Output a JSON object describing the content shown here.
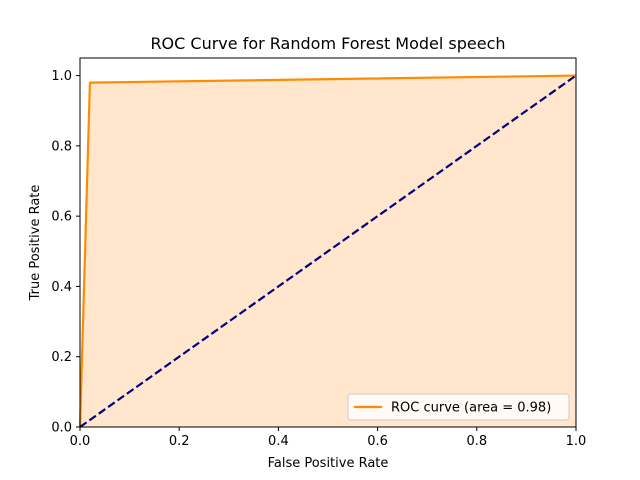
{
  "chart_data": {
    "type": "line",
    "title": "ROC Curve for Random Forest Model speech",
    "xlabel": "False Positive Rate",
    "ylabel": "True Positive Rate",
    "xlim": [
      0.0,
      1.0
    ],
    "ylim": [
      0.0,
      1.05
    ],
    "xticks": [
      0.0,
      0.2,
      0.4,
      0.6,
      0.8,
      1.0
    ],
    "yticks": [
      0.0,
      0.2,
      0.4,
      0.6,
      0.8,
      1.0
    ],
    "xtick_labels": [
      "0.0",
      "0.2",
      "0.4",
      "0.6",
      "0.8",
      "1.0"
    ],
    "ytick_labels": [
      "0.0",
      "0.2",
      "0.4",
      "0.6",
      "0.8",
      "1.0"
    ],
    "grid": false,
    "legend_position": "lower-right",
    "series": [
      {
        "name": "ROC curve (area = 0.98)",
        "color": "#ff8c00",
        "style": "solid",
        "fill": true,
        "fill_color": "#ffe6cc",
        "x": [
          0.0,
          0.02,
          1.0
        ],
        "y": [
          0.0,
          0.98,
          1.0
        ]
      },
      {
        "color": "#000080",
        "style": "dashed",
        "x": [
          0.0,
          1.0
        ],
        "y": [
          0.0,
          1.0
        ]
      }
    ]
  }
}
